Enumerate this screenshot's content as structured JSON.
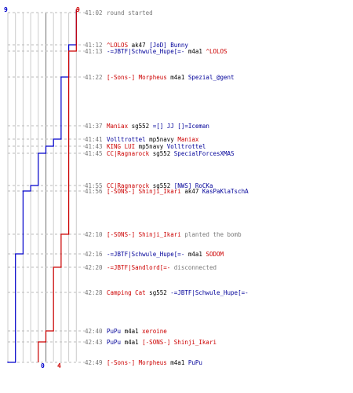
{
  "chart_data": {
    "type": "line",
    "y_axis": "time",
    "series": [
      {
        "name": "",
        "color": "#0000cc",
        "values_by_event": [
          9,
          8,
          8,
          7,
          7,
          6,
          5,
          4,
          3,
          2,
          2,
          1,
          1,
          1,
          1,
          1,
          0
        ]
      },
      {
        "name": "",
        "color": "#cc0000",
        "values_by_event": [
          9,
          9,
          8,
          8,
          8,
          8,
          8,
          8,
          8,
          8,
          7,
          7,
          6,
          6,
          5,
          4,
          4
        ]
      }
    ],
    "scale_labels": {
      "blue_top": "9",
      "red_top": "9",
      "blue_bottom": "0",
      "red_bottom": "4"
    },
    "xlim": [
      0,
      9
    ]
  },
  "colors": {
    "red": "#cc0000",
    "blue": "#000099",
    "gray": "#777777"
  },
  "events": [
    {
      "time": "41:02",
      "parts": [
        {
          "t": "round started",
          "c": "gray"
        }
      ]
    },
    {
      "time": "41:12",
      "parts": [
        {
          "t": "^LOLOS",
          "c": "red"
        },
        {
          "t": " ak47 ",
          "c": "plain"
        },
        {
          "t": "[JoD] Bunny",
          "c": "blue"
        }
      ]
    },
    {
      "time": "41:13",
      "parts": [
        {
          "t": "-=JBTF|Schwule_Hupe[=-",
          "c": "blue"
        },
        {
          "t": " m4a1 ",
          "c": "plain"
        },
        {
          "t": "^LOLOS",
          "c": "red"
        }
      ]
    },
    {
      "time": "41:22",
      "parts": [
        {
          "t": "[-Sons-] Morpheus",
          "c": "red"
        },
        {
          "t": " m4a1 ",
          "c": "plain"
        },
        {
          "t": "Spezial_@gent",
          "c": "blue"
        }
      ]
    },
    {
      "time": "41:37",
      "parts": [
        {
          "t": "Maniax",
          "c": "red"
        },
        {
          "t": " sg552 ",
          "c": "plain"
        },
        {
          "t": "=[] JJ []=Iceman",
          "c": "blue"
        }
      ]
    },
    {
      "time": "41:41",
      "parts": [
        {
          "t": "Volltrottel",
          "c": "blue"
        },
        {
          "t": " mp5navy ",
          "c": "plain"
        },
        {
          "t": "Maniax",
          "c": "red"
        }
      ]
    },
    {
      "time": "41:43",
      "parts": [
        {
          "t": "KING LUI",
          "c": "red"
        },
        {
          "t": " mp5navy ",
          "c": "plain"
        },
        {
          "t": "Volltrottel",
          "c": "blue"
        }
      ]
    },
    {
      "time": "41:45",
      "parts": [
        {
          "t": "CC|Ragnarock",
          "c": "red"
        },
        {
          "t": " sg552 ",
          "c": "plain"
        },
        {
          "t": "SpecialForcesXMAS",
          "c": "blue"
        }
      ]
    },
    {
      "time": "41:55",
      "parts": [
        {
          "t": "CC|Ragnarock",
          "c": "red"
        },
        {
          "t": " sg552 ",
          "c": "plain"
        },
        {
          "t": "[NWS] RoCKa",
          "c": "blue"
        }
      ]
    },
    {
      "time": "41:56",
      "parts": [
        {
          "t": "[-SONS-] Shinji_Ikari",
          "c": "red"
        },
        {
          "t": " ak47 ",
          "c": "plain"
        },
        {
          "t": "KasPaKlaTschA",
          "c": "blue"
        }
      ]
    },
    {
      "time": "42:10",
      "parts": [
        {
          "t": "[-SONS-] Shinji_Ikari",
          "c": "red"
        },
        {
          "t": " planted the bomb",
          "c": "gray"
        }
      ]
    },
    {
      "time": "42:16",
      "parts": [
        {
          "t": "-=JBTF|Schwule_Hupe[=-",
          "c": "blue"
        },
        {
          "t": " m4a1 ",
          "c": "plain"
        },
        {
          "t": "SODOM",
          "c": "red"
        }
      ]
    },
    {
      "time": "42:20",
      "parts": [
        {
          "t": "-=JBTF|Sandlord[=-",
          "c": "red"
        },
        {
          "t": " disconnected",
          "c": "gray"
        }
      ]
    },
    {
      "time": "42:28",
      "parts": [
        {
          "t": "Camping Cat",
          "c": "red"
        },
        {
          "t": " sg552 ",
          "c": "plain"
        },
        {
          "t": "-=JBTF|Schwule_Hupe[=-",
          "c": "blue"
        }
      ]
    },
    {
      "time": "42:40",
      "parts": [
        {
          "t": "PuPu",
          "c": "blue"
        },
        {
          "t": " m4a1 ",
          "c": "plain"
        },
        {
          "t": "xeroine",
          "c": "red"
        }
      ]
    },
    {
      "time": "42:43",
      "parts": [
        {
          "t": "PuPu",
          "c": "blue"
        },
        {
          "t": " m4a1 ",
          "c": "plain"
        },
        {
          "t": "[-SONS-] Shinji_Ikari",
          "c": "red"
        }
      ]
    },
    {
      "time": "42:49",
      "parts": [
        {
          "t": "[-Sons-] Morpheus",
          "c": "red"
        },
        {
          "t": " m4a1 ",
          "c": "plain"
        },
        {
          "t": "PuPu",
          "c": "blue"
        }
      ]
    }
  ]
}
